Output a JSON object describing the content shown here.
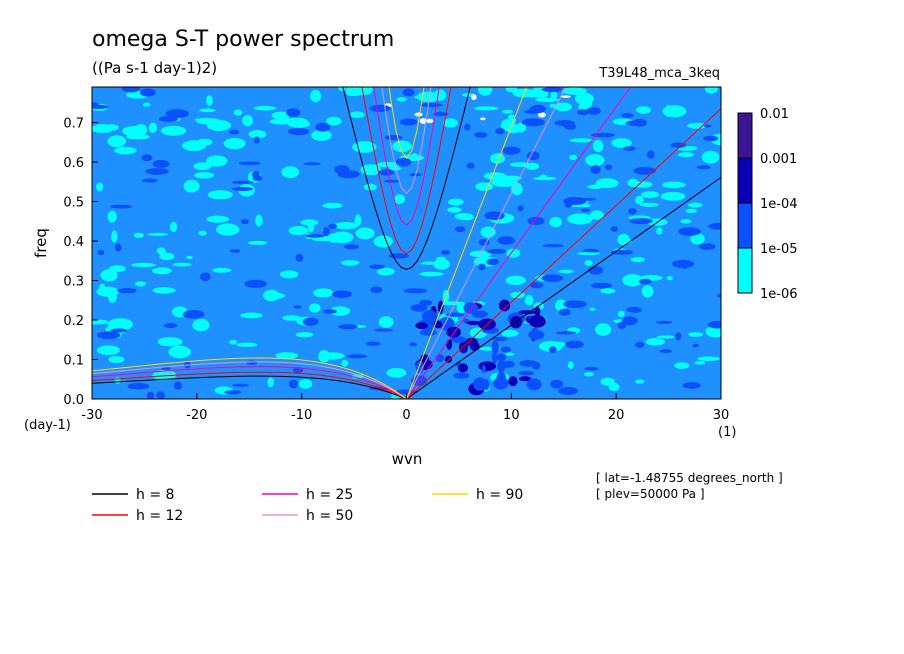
{
  "chart_data": {
    "type": "heatmap",
    "title": "omega S-T power spectrum",
    "subtitle": "((Pa s-1 day-1)2)",
    "run_label": "T39L48_mca_3keq",
    "xlabel": "wvn",
    "ylabel": "freq",
    "x_unit_label": "(1)",
    "y_unit_label": "(day-1)",
    "xlim": [
      -30,
      30
    ],
    "ylim": [
      0,
      0.79
    ],
    "x_ticks": [
      -30,
      -20,
      -10,
      0,
      10,
      20,
      30
    ],
    "x_tick_labels": [
      "-30",
      "-20",
      "-10",
      "0",
      "10",
      "20",
      "30"
    ],
    "y_ticks": [
      0,
      0.1,
      0.2,
      0.3,
      0.4,
      0.5,
      0.6,
      0.7
    ],
    "y_tick_labels": [
      "0.0",
      "0.1",
      "0.2",
      "0.3",
      "0.4",
      "0.5",
      "0.6",
      "0.7"
    ],
    "colorbar": {
      "levels": [
        1e-06,
        1e-05,
        0.0001,
        0.001,
        0.01
      ],
      "labels": [
        "1e-06",
        "1e-05",
        "1e-04",
        "0.001",
        "0.01"
      ],
      "colors": [
        "#00ffff",
        "#1e90ff",
        "#0a50ff",
        "#0a00b4",
        "#3c1496"
      ]
    },
    "dispersion_curves": [
      {
        "name": "h =  8",
        "color": "#000000"
      },
      {
        "name": "h = 12",
        "color": "#ff0000"
      },
      {
        "name": "h = 25",
        "color": "#ff00a0"
      },
      {
        "name": "h = 50",
        "color": "#dc96dc"
      },
      {
        "name": "h = 90",
        "color": "#ffd700"
      }
    ],
    "metadata_lines": [
      "[ lat=-1.48755 degrees_north ]",
      "[ plev=50000 Pa ]"
    ]
  }
}
